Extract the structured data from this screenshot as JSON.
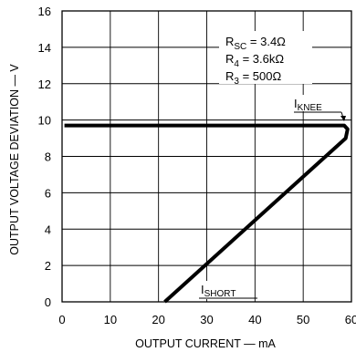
{
  "chart_data": {
    "type": "line",
    "title": "",
    "xlabel": "OUTPUT CURRENT — mA",
    "ylabel": "OUTPUT VOLTAGE DEVIATION — V",
    "xlim": [
      0,
      60
    ],
    "ylim": [
      0,
      16
    ],
    "xticks": [
      "0",
      "10",
      "20",
      "30",
      "40",
      "50",
      "60"
    ],
    "yticks": [
      "0",
      "2",
      "4",
      "6",
      "8",
      "10",
      "12",
      "14",
      "16"
    ],
    "grid": true,
    "series": [
      {
        "x": [
          0.5,
          55,
          58.5,
          59.2,
          58.8,
          21.3
        ],
        "y": [
          9.7,
          9.7,
          9.7,
          9.5,
          9.0,
          0
        ]
      }
    ],
    "annotations": {
      "params": [
        {
          "main": "R",
          "sub": "SC",
          "rest": " = 3.4Ω"
        },
        {
          "main": "R",
          "sub": "4",
          "rest": " = 3.6kΩ"
        },
        {
          "main": "R",
          "sub": "3",
          "rest": " = 500Ω"
        }
      ],
      "knee": {
        "main": "I",
        "sub": "KNEE"
      },
      "short": {
        "main": "I",
        "sub": "SHORT"
      }
    }
  }
}
